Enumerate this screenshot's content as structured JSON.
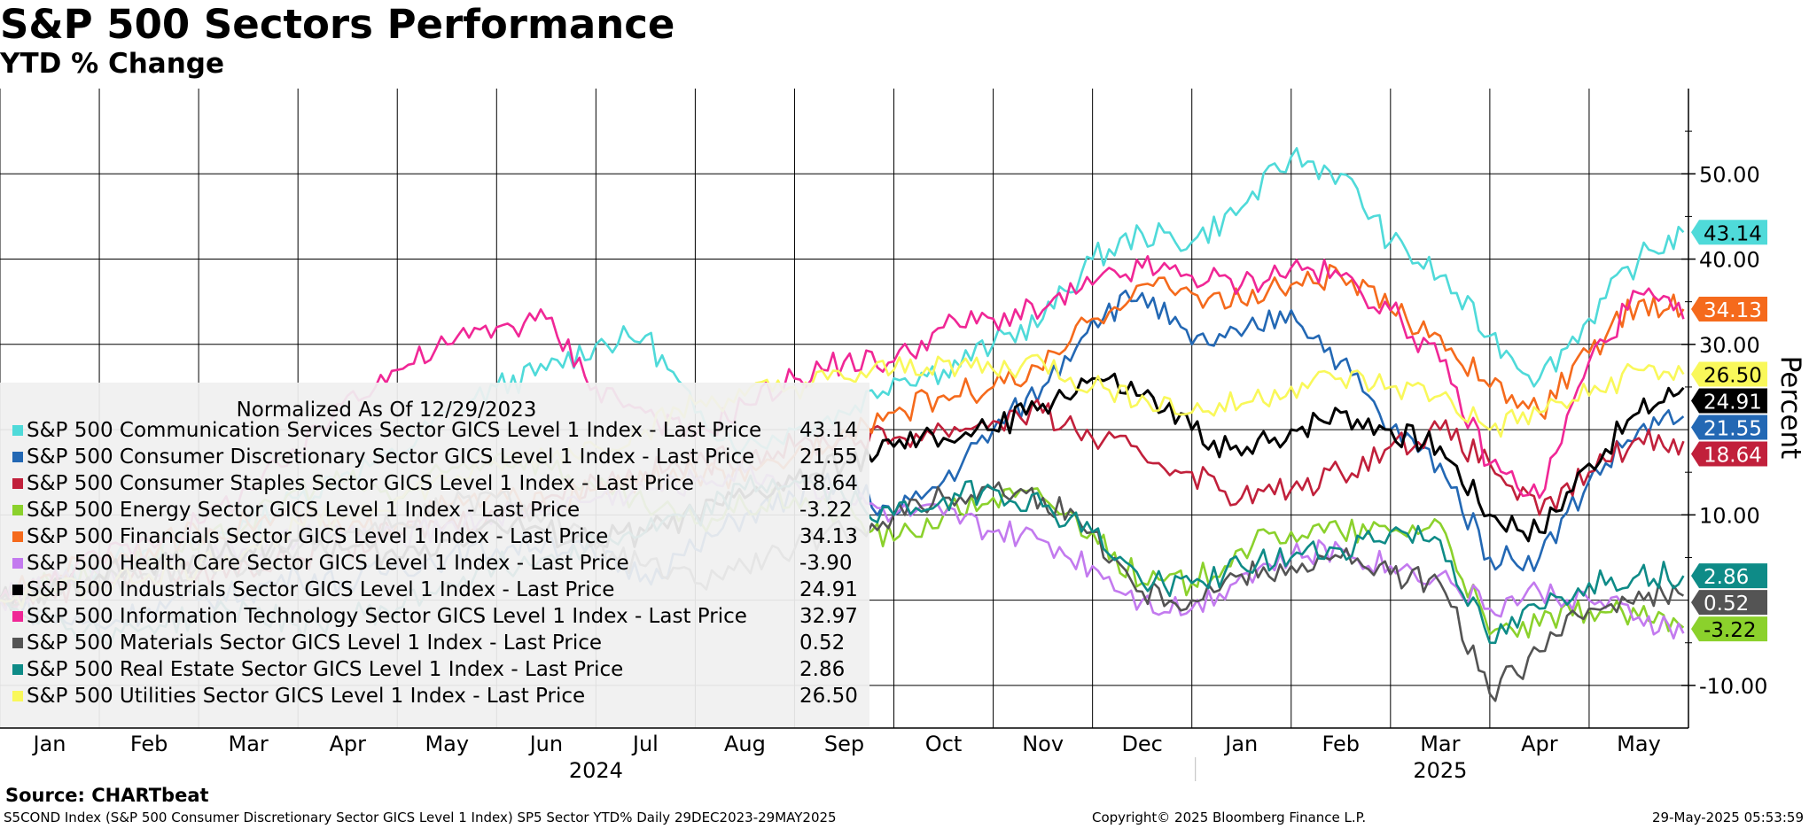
{
  "header": {
    "title": "S&P 500 Sectors Performance",
    "subtitle": "YTD % Change"
  },
  "footer": {
    "source": "Source: CHARTbeat",
    "index_info": "S5COND Index (S&P 500 Consumer Discretionary Sector GICS Level 1 Index) SP5 Sector YTD% Daily 29DEC2023-29MAY2025",
    "copyright": "Copyright© 2025 Bloomberg Finance L.P.",
    "timestamp": "29-May-2025 05:53:59"
  },
  "chart_data": {
    "type": "line",
    "title": "S&P 500 Sectors Performance",
    "subtitle": "YTD % Change",
    "ylabel": "Percent",
    "ylim": [
      -15,
      60
    ],
    "yticks": [
      -10,
      10,
      30,
      40,
      50
    ],
    "ytick_labels": [
      "-10.00",
      "10.00",
      "30.00",
      "40.00",
      "50.00"
    ],
    "xlim": [
      0,
      17
    ],
    "months": [
      "Jan",
      "Feb",
      "Mar",
      "Apr",
      "May",
      "Jun",
      "Jul",
      "Aug",
      "Sep",
      "Oct",
      "Nov",
      "Dec",
      "Jan",
      "Feb",
      "Mar",
      "Apr",
      "May"
    ],
    "years": [
      {
        "label": "2024",
        "center": 6
      },
      {
        "label": "2025",
        "center": 14.5
      }
    ],
    "year_divider": 12,
    "grid": true,
    "legend": {
      "title": "Normalized As Of 12/29/2023",
      "position": "left"
    },
    "x": [
      0,
      0.5,
      1,
      1.5,
      2,
      2.5,
      3,
      3.5,
      4,
      4.5,
      5,
      5.5,
      6,
      6.5,
      7,
      7.5,
      8,
      8.5,
      9,
      9.5,
      10,
      10.5,
      11,
      11.5,
      12,
      12.5,
      13,
      13.5,
      14,
      14.5,
      15,
      15.5,
      16,
      16.5,
      16.95
    ],
    "series": [
      {
        "name": "S&P 500 Communication Services Sector GICS Level 1 Index - Last Price",
        "last": "43.14",
        "color": "#4fdad9",
        "values": [
          0,
          2,
          4,
          6,
          7,
          9,
          12,
          15,
          17,
          22,
          25,
          27,
          30,
          31,
          22,
          18,
          20,
          22,
          26,
          27,
          30,
          33,
          40,
          43,
          42,
          46,
          52,
          50,
          42,
          38,
          31,
          26,
          33,
          40,
          43.14
        ]
      },
      {
        "name": "S&P 500 Consumer Discretionary Sector GICS Level 1 Index - Last Price",
        "last": "21.55",
        "color": "#2368b4",
        "values": [
          0,
          -2,
          -3,
          -1,
          0,
          1,
          3,
          2,
          4,
          5,
          6,
          7,
          5,
          3,
          6,
          10,
          12,
          14,
          10,
          14,
          20,
          25,
          33,
          36,
          30,
          31,
          34,
          28,
          20,
          16,
          5,
          5,
          14,
          20,
          21.55
        ]
      },
      {
        "name": "S&P 500 Consumer Staples Sector GICS Level 1 Index - Last Price",
        "last": "18.64",
        "color": "#c1203b",
        "values": [
          0,
          1,
          2,
          3,
          3,
          4,
          5,
          6,
          8,
          9,
          10,
          12,
          14,
          15,
          16,
          17,
          18,
          19,
          19,
          20,
          21,
          22,
          19,
          17,
          15,
          12,
          13,
          15,
          18,
          20,
          16,
          10,
          15,
          19,
          18.64
        ]
      },
      {
        "name": "S&P 500 Energy Sector GICS Level 1 Index - Last Price",
        "last": "-3.22",
        "color": "#8bd12c",
        "values": [
          0,
          2,
          3,
          5,
          6,
          9,
          13,
          14,
          12,
          15,
          17,
          16,
          13,
          11,
          9,
          11,
          12,
          10,
          7,
          10,
          12,
          12,
          8,
          2,
          2,
          6,
          8,
          8,
          8,
          9,
          -4,
          -3,
          -1,
          -2,
          -3.22
        ]
      },
      {
        "name": "S&P 500 Financials Sector GICS Level 1 Index - Last Price",
        "last": "34.13",
        "color": "#f56a1c",
        "values": [
          0,
          3,
          5,
          6,
          8,
          9,
          10,
          8,
          9,
          11,
          12,
          11,
          13,
          14,
          15,
          14,
          17,
          20,
          22,
          24,
          25,
          27,
          33,
          37,
          36,
          35,
          37,
          38,
          34,
          31,
          25,
          22,
          29,
          35,
          34.13
        ]
      },
      {
        "name": "S&P 500 Health Care Sector GICS Level 1 Index - Last Price",
        "last": "-3.90",
        "color": "#c37aef",
        "values": [
          0,
          2,
          3,
          4,
          5,
          6,
          7,
          8,
          7,
          9,
          10,
          11,
          12,
          13,
          14,
          15,
          14,
          12,
          10,
          10,
          8,
          7,
          4,
          0,
          -1,
          3,
          5,
          6,
          4,
          3,
          -1,
          1,
          0,
          -2,
          -3.9
        ]
      },
      {
        "name": "S&P 500 Industrials Sector GICS Level 1 Index - Last Price",
        "last": "24.91",
        "color": "#000000",
        "values": [
          0,
          1,
          3,
          4,
          5,
          6,
          7,
          6,
          5,
          7,
          9,
          8,
          7,
          8,
          10,
          12,
          14,
          16,
          18,
          19,
          20,
          23,
          26,
          24,
          20,
          17,
          20,
          22,
          20,
          18,
          10,
          8,
          16,
          22,
          24.91
        ]
      },
      {
        "name": "S&P 500 Information Technology Sector GICS Level 1 Index - Last Price",
        "last": "32.97",
        "color": "#f02796",
        "values": [
          0,
          2,
          5,
          7,
          9,
          13,
          17,
          24,
          27,
          30,
          32,
          33,
          25,
          22,
          19,
          23,
          26,
          28,
          28,
          32,
          33,
          34,
          37,
          39,
          38,
          37,
          39,
          38,
          34,
          28,
          16,
          12,
          28,
          36,
          32.97
        ]
      },
      {
        "name": "S&P 500 Materials Sector GICS Level 1 Index - Last Price",
        "last": "0.52",
        "color": "#545454",
        "values": [
          0,
          1,
          2,
          3,
          4,
          4,
          6,
          8,
          9,
          11,
          12,
          10,
          6,
          4,
          2,
          4,
          6,
          8,
          10,
          12,
          13,
          12,
          8,
          1,
          0,
          3,
          4,
          5,
          3,
          2,
          -11,
          -6,
          -1,
          1,
          0.52
        ]
      },
      {
        "name": "S&P 500 Real Estate Sector GICS Level 1 Index - Last Price",
        "last": "2.86",
        "color": "#0e8b87",
        "values": [
          0,
          -2,
          -4,
          -3,
          -2,
          -1,
          -3,
          -2,
          -1,
          2,
          4,
          5,
          7,
          8,
          10,
          13,
          14,
          12,
          10,
          12,
          13,
          11,
          8,
          2,
          2,
          4,
          5,
          6,
          8,
          7,
          -5,
          -1,
          2,
          3,
          2.86
        ]
      },
      {
        "name": "S&P 500 Utilities Sector GICS Level 1 Index - Last Price",
        "last": "26.50",
        "color": "#f9f85a",
        "values": [
          0,
          1,
          2,
          3,
          4,
          6,
          9,
          10,
          12,
          14,
          16,
          17,
          18,
          20,
          23,
          24,
          25,
          26,
          27,
          28,
          27,
          28,
          25,
          24,
          22,
          23,
          25,
          26,
          25,
          24,
          20,
          22,
          24,
          27,
          26.5
        ]
      }
    ],
    "right_labels_order": [
      0,
      4,
      10,
      6,
      1,
      2,
      9,
      8,
      3
    ]
  }
}
